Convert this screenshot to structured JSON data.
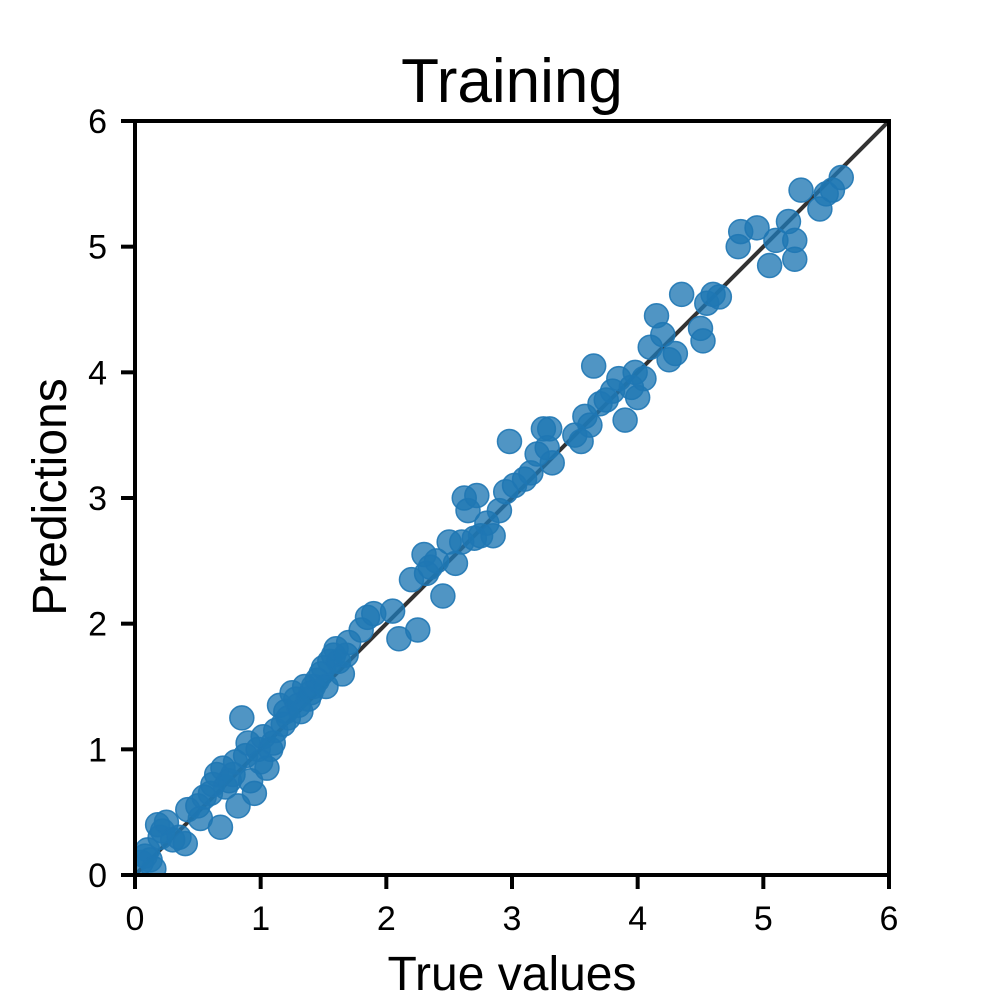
{
  "chart_data": {
    "type": "scatter",
    "title": "Training",
    "xlabel": "True values",
    "ylabel": "Predictions",
    "xlim": [
      0,
      6
    ],
    "ylim": [
      0,
      6
    ],
    "xticks": [
      "0",
      "1",
      "2",
      "3",
      "4",
      "5",
      "6"
    ],
    "yticks": [
      "0",
      "1",
      "2",
      "3",
      "4",
      "5",
      "6"
    ],
    "grid": false,
    "legend": "none",
    "point_color": "#1f77b4",
    "reference_line": {
      "x": [
        0,
        6
      ],
      "y": [
        0,
        6
      ],
      "color": "#333333"
    },
    "series": [
      {
        "points": [
          [
            0.05,
            0.1
          ],
          [
            0.08,
            0.15
          ],
          [
            0.1,
            0.2
          ],
          [
            0.12,
            0.12
          ],
          [
            0.15,
            0.05
          ],
          [
            0.18,
            0.4
          ],
          [
            0.2,
            0.3
          ],
          [
            0.22,
            0.35
          ],
          [
            0.25,
            0.42
          ],
          [
            0.3,
            0.28
          ],
          [
            0.35,
            0.3
          ],
          [
            0.4,
            0.25
          ],
          [
            0.42,
            0.52
          ],
          [
            0.5,
            0.55
          ],
          [
            0.52,
            0.45
          ],
          [
            0.55,
            0.62
          ],
          [
            0.6,
            0.65
          ],
          [
            0.62,
            0.72
          ],
          [
            0.65,
            0.8
          ],
          [
            0.68,
            0.38
          ],
          [
            0.7,
            0.85
          ],
          [
            0.72,
            0.7
          ],
          [
            0.75,
            0.75
          ],
          [
            0.78,
            0.8
          ],
          [
            0.8,
            0.9
          ],
          [
            0.82,
            0.55
          ],
          [
            0.85,
            1.25
          ],
          [
            0.88,
            0.95
          ],
          [
            0.9,
            1.05
          ],
          [
            0.92,
            0.75
          ],
          [
            0.95,
            0.65
          ],
          [
            0.98,
            1.0
          ],
          [
            1.0,
            0.9
          ],
          [
            1.02,
            1.1
          ],
          [
            1.05,
            0.85
          ],
          [
            1.08,
            1.0
          ],
          [
            1.1,
            1.05
          ],
          [
            1.12,
            1.15
          ],
          [
            1.15,
            1.35
          ],
          [
            1.18,
            1.2
          ],
          [
            1.2,
            1.3
          ],
          [
            1.22,
            1.25
          ],
          [
            1.25,
            1.45
          ],
          [
            1.28,
            1.4
          ],
          [
            1.3,
            1.35
          ],
          [
            1.32,
            1.3
          ],
          [
            1.35,
            1.5
          ],
          [
            1.38,
            1.4
          ],
          [
            1.4,
            1.45
          ],
          [
            1.42,
            1.5
          ],
          [
            1.45,
            1.55
          ],
          [
            1.48,
            1.6
          ],
          [
            1.5,
            1.65
          ],
          [
            1.52,
            1.5
          ],
          [
            1.55,
            1.7
          ],
          [
            1.58,
            1.75
          ],
          [
            1.6,
            1.8
          ],
          [
            1.62,
            1.7
          ],
          [
            1.65,
            1.6
          ],
          [
            1.68,
            1.75
          ],
          [
            1.7,
            1.85
          ],
          [
            1.8,
            1.95
          ],
          [
            1.85,
            2.05
          ],
          [
            1.9,
            2.08
          ],
          [
            2.05,
            2.1
          ],
          [
            2.1,
            1.88
          ],
          [
            2.2,
            2.35
          ],
          [
            2.25,
            1.95
          ],
          [
            2.3,
            2.55
          ],
          [
            2.32,
            2.4
          ],
          [
            2.35,
            2.45
          ],
          [
            2.4,
            2.5
          ],
          [
            2.45,
            2.22
          ],
          [
            2.5,
            2.65
          ],
          [
            2.55,
            2.48
          ],
          [
            2.6,
            2.65
          ],
          [
            2.62,
            3.0
          ],
          [
            2.65,
            2.9
          ],
          [
            2.7,
            2.68
          ],
          [
            2.72,
            3.02
          ],
          [
            2.75,
            2.7
          ],
          [
            2.8,
            2.8
          ],
          [
            2.85,
            2.7
          ],
          [
            2.9,
            2.9
          ],
          [
            2.95,
            3.05
          ],
          [
            2.98,
            3.45
          ],
          [
            3.02,
            3.1
          ],
          [
            3.1,
            3.15
          ],
          [
            3.15,
            3.2
          ],
          [
            3.2,
            3.35
          ],
          [
            3.25,
            3.55
          ],
          [
            3.28,
            3.4
          ],
          [
            3.3,
            3.55
          ],
          [
            3.32,
            3.28
          ],
          [
            3.5,
            3.5
          ],
          [
            3.55,
            3.45
          ],
          [
            3.58,
            3.65
          ],
          [
            3.62,
            3.58
          ],
          [
            3.65,
            4.05
          ],
          [
            3.7,
            3.75
          ],
          [
            3.75,
            3.78
          ],
          [
            3.8,
            3.85
          ],
          [
            3.85,
            3.95
          ],
          [
            3.9,
            3.62
          ],
          [
            3.95,
            3.88
          ],
          [
            3.98,
            4.0
          ],
          [
            4.0,
            3.8
          ],
          [
            4.05,
            3.95
          ],
          [
            4.1,
            4.2
          ],
          [
            4.15,
            4.45
          ],
          [
            4.2,
            4.3
          ],
          [
            4.25,
            4.1
          ],
          [
            4.3,
            4.15
          ],
          [
            4.35,
            4.62
          ],
          [
            4.5,
            4.35
          ],
          [
            4.52,
            4.25
          ],
          [
            4.55,
            4.55
          ],
          [
            4.6,
            4.62
          ],
          [
            4.65,
            4.6
          ],
          [
            4.8,
            5.0
          ],
          [
            4.82,
            5.12
          ],
          [
            4.95,
            5.15
          ],
          [
            5.05,
            4.85
          ],
          [
            5.1,
            5.05
          ],
          [
            5.2,
            5.2
          ],
          [
            5.25,
            4.9
          ],
          [
            5.25,
            5.05
          ],
          [
            5.3,
            5.45
          ],
          [
            5.45,
            5.3
          ],
          [
            5.5,
            5.42
          ],
          [
            5.55,
            5.45
          ],
          [
            5.62,
            5.55
          ]
        ]
      }
    ]
  }
}
